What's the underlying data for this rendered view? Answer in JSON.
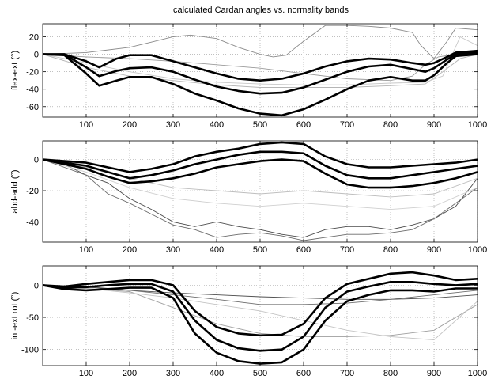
{
  "figure": {
    "title": "calculated Cardan angles vs. normality bands"
  },
  "chart_data": [
    {
      "type": "line",
      "ylabel": "flex-ext (°)",
      "xlabel": "",
      "xlim": [
        0,
        1000
      ],
      "ylim": [
        -72,
        35
      ],
      "xticks": [
        100,
        200,
        300,
        400,
        500,
        600,
        700,
        800,
        900,
        1000
      ],
      "yticks": [
        20,
        0,
        -20,
        -40,
        -60
      ],
      "grid": true,
      "band": {
        "x": [
          0,
          50,
          100,
          130,
          170,
          200,
          250,
          300,
          350,
          400,
          450,
          500,
          550,
          600,
          650,
          700,
          750,
          800,
          850,
          880,
          900,
          930,
          950,
          1000
        ],
        "upper": [
          0,
          0,
          -8,
          -15,
          -5,
          -1,
          -1,
          -8,
          -15,
          -22,
          -28,
          -30,
          -28,
          -22,
          -14,
          -8,
          -5,
          -6,
          -10,
          -12,
          -10,
          -3,
          2,
          4
        ],
        "mean": [
          0,
          0,
          -15,
          -25,
          -19,
          -16,
          -15,
          -20,
          -29,
          -37,
          -42,
          -45,
          -44,
          -38,
          -29,
          -20,
          -14,
          -12,
          -17,
          -20,
          -16,
          -6,
          0,
          2
        ],
        "lower": [
          0,
          -1,
          -22,
          -36,
          -30,
          -26,
          -26,
          -34,
          -45,
          -53,
          -62,
          -68,
          -70,
          -63,
          -52,
          -40,
          -30,
          -26,
          -30,
          -30,
          -24,
          -10,
          -2,
          0
        ]
      },
      "series": [
        {
          "color": "#8a8a8a",
          "x": [
            0,
            100,
            200,
            250,
            300,
            340,
            400,
            450,
            500,
            530,
            560,
            600,
            650,
            700,
            750,
            800,
            850,
            870,
            900,
            930,
            950,
            1000
          ],
          "y": [
            0,
            2,
            8,
            14,
            20,
            22,
            18,
            8,
            0,
            -3,
            -1,
            15,
            33,
            33,
            32,
            30,
            25,
            10,
            -5,
            15,
            30,
            28
          ]
        },
        {
          "color": "#9a9a9a",
          "x": [
            0,
            100,
            200,
            300,
            400,
            500,
            600,
            700,
            800,
            850,
            880,
            910,
            950,
            1000
          ],
          "y": [
            0,
            -3,
            -5,
            -8,
            -12,
            -16,
            -22,
            -28,
            -30,
            -25,
            -12,
            -3,
            0,
            -1
          ]
        },
        {
          "color": "#b5b5b5",
          "x": [
            0,
            100,
            200,
            300,
            400,
            500,
            600,
            700,
            800,
            880,
            920,
            960,
            1000
          ],
          "y": [
            0,
            -15,
            -25,
            -30,
            -35,
            -38,
            -38,
            -38,
            -36,
            -34,
            -20,
            -5,
            0
          ]
        },
        {
          "color": "#c8c8c8",
          "x": [
            0,
            100,
            200,
            300,
            400,
            500,
            600,
            700,
            800,
            880,
            920,
            960,
            1000
          ],
          "y": [
            0,
            -10,
            -20,
            -28,
            -32,
            -34,
            -35,
            -35,
            -33,
            -32,
            -25,
            20,
            10
          ]
        }
      ]
    },
    {
      "type": "line",
      "ylabel": "abd-add (°)",
      "xlabel": "",
      "xlim": [
        0,
        1000
      ],
      "ylim": [
        -53,
        12
      ],
      "xticks": [
        100,
        200,
        300,
        400,
        500,
        600,
        700,
        800,
        900,
        1000
      ],
      "yticks": [
        0,
        -20,
        -40
      ],
      "grid": true,
      "band": {
        "x": [
          0,
          50,
          100,
          150,
          200,
          250,
          300,
          350,
          400,
          450,
          500,
          550,
          600,
          650,
          700,
          750,
          800,
          850,
          900,
          950,
          1000
        ],
        "upper": [
          0,
          -1,
          -2,
          -5,
          -8,
          -6,
          -3,
          2,
          5,
          7,
          10,
          11,
          10,
          2,
          -3,
          -5,
          -5,
          -4,
          -3,
          -2,
          0
        ],
        "mean": [
          0,
          -2,
          -4,
          -8,
          -12,
          -10,
          -7,
          -3,
          0,
          3,
          5,
          5,
          4,
          -4,
          -10,
          -12,
          -12,
          -10,
          -8,
          -6,
          -4
        ],
        "lower": [
          0,
          -3,
          -6,
          -11,
          -15,
          -14,
          -12,
          -9,
          -5,
          -3,
          -1,
          0,
          -1,
          -9,
          -16,
          -18,
          -18,
          -17,
          -15,
          -12,
          -8
        ]
      },
      "series": [
        {
          "color": "#4a4a4a",
          "x": [
            0,
            50,
            100,
            150,
            200,
            250,
            300,
            350,
            400,
            450,
            500,
            550,
            600,
            650,
            700,
            750,
            800,
            850,
            900,
            950,
            1000
          ],
          "y": [
            0,
            -3,
            -10,
            -15,
            -25,
            -32,
            -40,
            -43,
            -40,
            -43,
            -45,
            -48,
            -50,
            -45,
            -43,
            -43,
            -45,
            -42,
            -38,
            -30,
            -12
          ]
        },
        {
          "color": "#6a6a6a",
          "x": [
            0,
            50,
            100,
            150,
            200,
            250,
            300,
            350,
            400,
            450,
            500,
            550,
            600,
            650,
            700,
            750,
            800,
            850,
            900,
            950,
            1000
          ],
          "y": [
            0,
            -5,
            -10,
            -22,
            -28,
            -35,
            -42,
            -45,
            -50,
            -48,
            -47,
            -49,
            -52,
            -50,
            -48,
            -48,
            -47,
            -45,
            -38,
            -28,
            -18
          ]
        },
        {
          "color": "#bdbdbd",
          "x": [
            0,
            100,
            200,
            300,
            400,
            500,
            600,
            700,
            800,
            900,
            1000
          ],
          "y": [
            0,
            -5,
            -12,
            -18,
            -20,
            -22,
            -20,
            -22,
            -24,
            -22,
            -12
          ]
        },
        {
          "color": "#cfcfcf",
          "x": [
            0,
            100,
            200,
            300,
            400,
            500,
            600,
            700,
            800,
            900,
            1000
          ],
          "y": [
            0,
            -8,
            -18,
            -25,
            -28,
            -30,
            -28,
            -30,
            -32,
            -30,
            -18
          ]
        }
      ]
    },
    {
      "type": "line",
      "ylabel": "int-ext rot (°)",
      "xlabel": "",
      "xlim": [
        0,
        1000
      ],
      "ylim": [
        -125,
        30
      ],
      "xticks": [
        100,
        200,
        300,
        400,
        500,
        600,
        700,
        800,
        900,
        1000
      ],
      "yticks": [
        0,
        -50,
        -100
      ],
      "grid": true,
      "band": {
        "x": [
          0,
          50,
          100,
          150,
          200,
          250,
          300,
          350,
          400,
          450,
          500,
          550,
          600,
          650,
          700,
          750,
          800,
          850,
          900,
          950,
          1000
        ],
        "upper": [
          0,
          -2,
          2,
          5,
          8,
          8,
          0,
          -40,
          -65,
          -75,
          -78,
          -77,
          -60,
          -20,
          2,
          10,
          18,
          20,
          15,
          8,
          10
        ],
        "mean": [
          0,
          -4,
          -3,
          0,
          2,
          2,
          -10,
          -55,
          -85,
          -98,
          -102,
          -100,
          -80,
          -35,
          -10,
          -2,
          5,
          5,
          2,
          0,
          2
        ],
        "lower": [
          0,
          -6,
          -8,
          -6,
          -4,
          -4,
          -20,
          -75,
          -105,
          -118,
          -122,
          -120,
          -100,
          -55,
          -25,
          -15,
          -8,
          -8,
          -10,
          -5,
          -5
        ]
      },
      "series": [
        {
          "color": "#4f4f4f",
          "x": [
            0,
            100,
            200,
            300,
            400,
            500,
            600,
            700,
            800,
            900,
            1000
          ],
          "y": [
            0,
            -3,
            -8,
            -12,
            -15,
            -18,
            -20,
            -22,
            -22,
            -20,
            -15
          ]
        },
        {
          "color": "#6e6e6e",
          "x": [
            0,
            100,
            200,
            300,
            400,
            500,
            600,
            700,
            800,
            900,
            1000
          ],
          "y": [
            0,
            -2,
            -8,
            -15,
            -22,
            -30,
            -30,
            -28,
            -22,
            -15,
            -8
          ]
        },
        {
          "color": "#9e9e9e",
          "x": [
            0,
            100,
            200,
            300,
            400,
            500,
            600,
            700,
            800,
            900,
            1000
          ],
          "y": [
            0,
            -5,
            -10,
            -35,
            -60,
            -75,
            -80,
            -80,
            -78,
            -70,
            -30
          ]
        },
        {
          "color": "#c3c3c3",
          "x": [
            0,
            100,
            200,
            300,
            400,
            500,
            600,
            700,
            800,
            900,
            1000
          ],
          "y": [
            0,
            -5,
            -12,
            -20,
            -30,
            -40,
            -55,
            -70,
            -80,
            -85,
            -25
          ]
        }
      ]
    }
  ]
}
